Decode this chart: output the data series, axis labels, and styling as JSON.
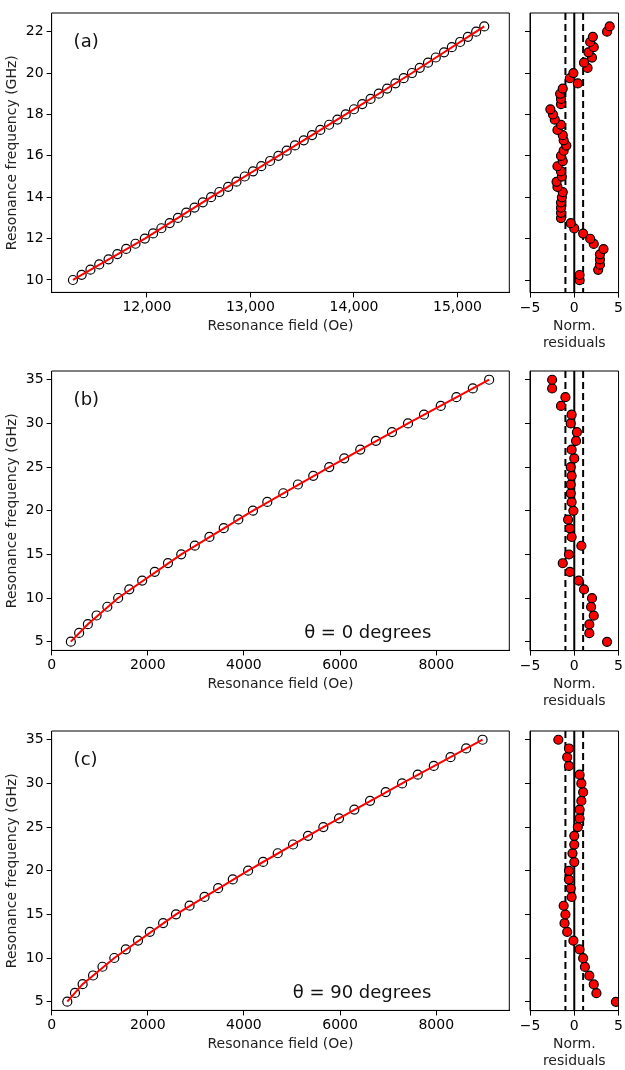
{
  "chart_data": [
    {
      "type": "scatter",
      "xlabel": "Resonance field (Oe)",
      "ylabel": "Resonance frequency (GHz)",
      "annotations": [
        "(a)"
      ],
      "xlim": [
        11080,
        15500
      ],
      "ylim": [
        9.4,
        22.9
      ],
      "xticks": [
        {
          "value": 12000,
          "label": "12,000"
        },
        {
          "value": 13000,
          "label": "13,000"
        },
        {
          "value": 14000,
          "label": "14,000"
        },
        {
          "value": 15000,
          "label": "15,000"
        }
      ],
      "yticks": [
        10,
        12,
        14,
        16,
        18,
        20,
        22
      ],
      "legend": false,
      "grid": false,
      "series": [
        {
          "marker": "circle",
          "color": "#000000",
          "x": [
            11286,
            11370,
            11455,
            11540,
            11630,
            11715,
            11800,
            11890,
            11980,
            12060,
            12140,
            12220,
            12300,
            12380,
            12460,
            12540,
            12620,
            12700,
            12785,
            12865,
            12945,
            13025,
            13105,
            13190,
            13270,
            13350,
            13430,
            13515,
            13595,
            13675,
            13760,
            13840,
            13920,
            14000,
            14080,
            14160,
            14240,
            14320,
            14400,
            14480,
            14560,
            14635,
            14715,
            14790,
            14870,
            14945,
            15025,
            15100,
            15180,
            15258
          ],
          "values": [
            10,
            10.25,
            10.5,
            10.75,
            11,
            11.25,
            11.5,
            11.75,
            12,
            12.25,
            12.5,
            12.75,
            13,
            13.25,
            13.5,
            13.75,
            14,
            14.25,
            14.5,
            14.75,
            15,
            15.25,
            15.5,
            15.75,
            16,
            16.25,
            16.5,
            16.75,
            17,
            17.25,
            17.5,
            17.75,
            18,
            18.25,
            18.5,
            18.75,
            19,
            19.25,
            19.5,
            19.75,
            20,
            20.25,
            20.5,
            20.75,
            21,
            21.25,
            21.5,
            21.75,
            22,
            22.25
          ]
        },
        {
          "type": "line",
          "color": "#ff0000",
          "x": [
            11286,
            11980,
            12620,
            13270,
            13920,
            14560,
            15180,
            15258
          ],
          "values": [
            10,
            12,
            14,
            16,
            18,
            20,
            22,
            22.25
          ]
        }
      ]
    },
    {
      "type": "scatter",
      "xlabel": "Norm. residuals",
      "xlim": [
        -5,
        5
      ],
      "ylim": [
        9.4,
        22.9
      ],
      "xticks": [
        {
          "value": -5,
          "label": "−5"
        },
        0,
        5
      ],
      "yticks": [
        10,
        12,
        14,
        16,
        18,
        20,
        22
      ],
      "tick_labels": "x",
      "marker": "circle",
      "legend": false,
      "grid": false,
      "ref_lines": [
        {
          "axis": "x",
          "value": -1,
          "color": "#000000",
          "line_style": "dashed"
        },
        {
          "axis": "x",
          "value": 0,
          "color": "#000000",
          "line_style": "solid"
        },
        {
          "axis": "x",
          "value": 1,
          "color": "#000000",
          "line_style": "dashed"
        }
      ],
      "series": [
        {
          "type": "scatter",
          "color": "#ff0000",
          "x": [
            0.6,
            0.6,
            2.7,
            2.9,
            2.9,
            2.9,
            3.3,
            2.2,
            1.8,
            1.0,
            0.0,
            -0.4,
            -1.5,
            -1.5,
            -1.5,
            -1.5,
            -1.4,
            -1.3,
            -1.9,
            -2.0,
            -1.4,
            -1.5,
            -1.9,
            -1.3,
            -1.5,
            -1.2,
            -0.9,
            -1.2,
            -1.3,
            -1.9,
            -1.5,
            -2.2,
            -2.4,
            -2.7,
            -1.5,
            -1.5,
            -1.6,
            -1.3,
            0.4,
            -0.5,
            -0.1,
            1.5,
            1.1,
            2.0,
            1.6,
            2.2,
            1.8,
            2.1,
            3.7,
            4.0
          ],
          "values": [
            10,
            10.25,
            10.5,
            10.75,
            11,
            11.25,
            11.5,
            11.75,
            12,
            12.25,
            12.5,
            12.75,
            13,
            13.25,
            13.5,
            13.75,
            14,
            14.25,
            14.5,
            14.75,
            15,
            15.25,
            15.5,
            15.75,
            16,
            16.25,
            16.5,
            16.75,
            17,
            17.25,
            17.5,
            17.75,
            18,
            18.25,
            18.5,
            18.75,
            19,
            19.25,
            19.5,
            19.75,
            20,
            20.25,
            20.5,
            20.75,
            21,
            21.25,
            21.5,
            21.75,
            22,
            22.25
          ]
        }
      ]
    },
    {
      "type": "scatter",
      "xlabel": "Resonance field (Oe)",
      "ylabel": "Resonance frequency (GHz)",
      "annotations": [
        "(b)",
        "θ = 0 degrees"
      ],
      "xlim": [
        0,
        9520
      ],
      "ylim": [
        4,
        36
      ],
      "xticks": [
        0,
        2000,
        4000,
        6000,
        8000
      ],
      "yticks": [
        5,
        10,
        15,
        20,
        25,
        30,
        35
      ],
      "legend": false,
      "grid": false,
      "series": [
        {
          "marker": "circle",
          "color": "#000000",
          "x": [
            400,
            572,
            754,
            935,
            1159,
            1384,
            1616,
            1884,
            2145,
            2420,
            2696,
            2978,
            3283,
            3580,
            3884,
            4188,
            4486,
            4819,
            5123,
            5442,
            5775,
            6087,
            6420,
            6746,
            7080,
            7413,
            7746,
            8094,
            8420,
            8761,
            9101
          ],
          "values": [
            5,
            6,
            7,
            8,
            9,
            10,
            11,
            12,
            13,
            14,
            15,
            16,
            17,
            18,
            19,
            20,
            21,
            22,
            23,
            24,
            25,
            26,
            27,
            28,
            29,
            30,
            31,
            32,
            33,
            34,
            35
          ]
        },
        {
          "type": "line",
          "color": "#ff0000",
          "x": [
            400,
            754,
            1384,
            2696,
            4188,
            5775,
            7413,
            9101
          ],
          "values": [
            5,
            7,
            10,
            15,
            20,
            25,
            30,
            35
          ]
        }
      ]
    },
    {
      "type": "scatter",
      "xlabel": "Norm. residuals",
      "xlim": [
        -5,
        5
      ],
      "ylim": [
        4,
        36
      ],
      "xticks": [
        {
          "value": -5,
          "label": "−5"
        },
        0,
        5
      ],
      "yticks": [
        5,
        10,
        15,
        20,
        25,
        30,
        35
      ],
      "tick_labels": "x",
      "marker": "circle",
      "legend": false,
      "grid": false,
      "ref_lines": [
        {
          "axis": "x",
          "value": -1,
          "color": "#000000",
          "line_style": "dashed"
        },
        {
          "axis": "x",
          "value": 0,
          "color": "#000000",
          "line_style": "solid"
        },
        {
          "axis": "x",
          "value": 1,
          "color": "#000000",
          "line_style": "dashed"
        }
      ],
      "series": [
        {
          "type": "scatter",
          "color": "#ff0000",
          "x": [
            3.7,
            1.7,
            1.7,
            2.2,
            1.9,
            2.0,
            1.1,
            0.5,
            -0.5,
            -1.3,
            -0.6,
            0.8,
            -0.3,
            -0.5,
            -0.7,
            -0.1,
            -0.3,
            -0.4,
            -0.4,
            -0.3,
            -0.4,
            0.0,
            -0.3,
            0.2,
            0.3,
            -0.4,
            -0.3,
            -1.5,
            -1.0,
            -2.5,
            -2.5
          ],
          "values": [
            5,
            6,
            7,
            8,
            9,
            10,
            11,
            12,
            13,
            14,
            15,
            16,
            17,
            18,
            19,
            20,
            21,
            22,
            23,
            24,
            25,
            26,
            27,
            28,
            29,
            30,
            31,
            32,
            33,
            34,
            35
          ]
        }
      ]
    },
    {
      "type": "scatter",
      "xlabel": "Resonance field (Oe)",
      "ylabel": "Resonance frequency (GHz)",
      "annotations": [
        "(c)",
        "θ = 90 degrees"
      ],
      "xlim": [
        0,
        9520
      ],
      "ylim": [
        4,
        36
      ],
      "xticks": [
        0,
        2000,
        4000,
        6000,
        8000
      ],
      "yticks": [
        5,
        10,
        15,
        20,
        25,
        30,
        35
      ],
      "legend": false,
      "grid": false,
      "series": [
        {
          "marker": "circle",
          "color": "#000000",
          "x": [
            326,
            486,
            645,
            862,
            1058,
            1304,
            1543,
            1797,
            2043,
            2319,
            2587,
            2870,
            3181,
            3464,
            3768,
            4087,
            4399,
            4703,
            5022,
            5333,
            5652,
            5978,
            6297,
            6623,
            6949,
            7290,
            7616,
            7949,
            8297,
            8623,
            8964
          ],
          "values": [
            5,
            6,
            7,
            8,
            9,
            10,
            11,
            12,
            13,
            14,
            15,
            16,
            17,
            18,
            19,
            20,
            21,
            22,
            23,
            24,
            25,
            26,
            27,
            28,
            29,
            30,
            31,
            32,
            33,
            34,
            35
          ]
        },
        {
          "type": "line",
          "color": "#ff0000",
          "x": [
            326,
            645,
            1304,
            2587,
            4087,
            5652,
            7290,
            8964
          ],
          "values": [
            5,
            7,
            10,
            15,
            20,
            25,
            30,
            35
          ]
        }
      ]
    },
    {
      "type": "scatter",
      "xlabel": "Norm. residuals",
      "xlim": [
        -5,
        5
      ],
      "ylim": [
        4,
        36
      ],
      "xticks": [
        {
          "value": -5,
          "label": "−5"
        },
        0,
        5
      ],
      "yticks": [
        5,
        10,
        15,
        20,
        25,
        30,
        35
      ],
      "tick_labels": "x",
      "marker": "circle",
      "legend": false,
      "grid": false,
      "ref_lines": [
        {
          "axis": "x",
          "value": -1,
          "color": "#000000",
          "line_style": "dashed"
        },
        {
          "axis": "x",
          "value": 0,
          "color": "#000000",
          "line_style": "solid"
        },
        {
          "axis": "x",
          "value": 1,
          "color": "#000000",
          "line_style": "dashed"
        }
      ],
      "series": [
        {
          "type": "scatter",
          "color": "#ff0000",
          "x": [
            4.7,
            2.5,
            2.2,
            1.7,
            1.2,
            1.0,
            0.6,
            -0.1,
            -0.8,
            -1.1,
            -1.0,
            -1.2,
            -0.3,
            -0.4,
            -0.6,
            -0.6,
            0.0,
            -0.2,
            0.0,
            0.0,
            0.4,
            0.6,
            0.6,
            0.8,
            1.0,
            0.8,
            0.6,
            -0.6,
            -0.8,
            -0.6,
            -1.8
          ],
          "values": [
            5,
            6,
            7,
            8,
            9,
            10,
            11,
            12,
            13,
            14,
            15,
            16,
            17,
            18,
            19,
            20,
            21,
            22,
            23,
            24,
            25,
            26,
            27,
            28,
            29,
            30,
            31,
            32,
            33,
            34,
            35
          ]
        }
      ]
    }
  ]
}
